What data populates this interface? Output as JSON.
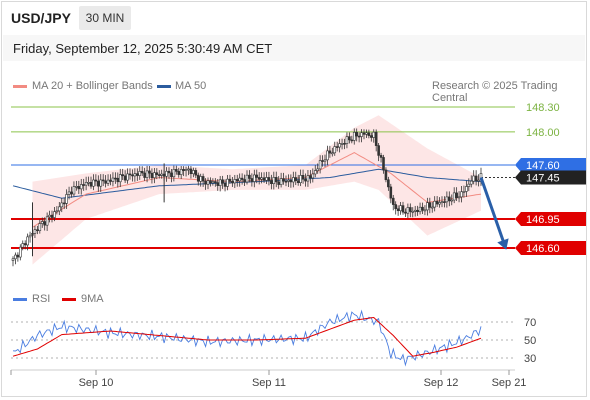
{
  "header": {
    "pair": "USD/JPY",
    "timeframe": "30 MIN",
    "datetime": "Friday, September 12, 2025 5:30:49 AM CET"
  },
  "legend": {
    "ma20": "MA 20 + Bollinger Bands",
    "ma50": "MA 50",
    "credit": "Research © 2025 Trading Central",
    "rsi": "RSI",
    "ma9": "9MA"
  },
  "colors": {
    "ma20": "#f28b82",
    "band_fill": "#fde2e2",
    "ma50": "#2b5c9e",
    "candle": "#333333",
    "resistance": "#8bc34a",
    "support": "#e00000",
    "pivot": "#2f6fe4",
    "arrow": "#2a5fa8",
    "rsi": "#4a7de0",
    "rsi_ma": "#e00000"
  },
  "chart_data": [
    {
      "type": "candlestick",
      "title": "USD/JPY 30 MIN",
      "x_ticks": [
        "Sep 10",
        "Sep 11",
        "Sep 12",
        "Sep 21"
      ],
      "ylim": [
        146.35,
        148.45
      ],
      "levels": [
        {
          "value": 148.3,
          "label": "148.30",
          "kind": "resistance"
        },
        {
          "value": 148.0,
          "label": "148.00",
          "kind": "resistance"
        },
        {
          "value": 147.6,
          "label": "147.60",
          "kind": "pivot"
        },
        {
          "value": 147.45,
          "label": "147.45",
          "kind": "last"
        },
        {
          "value": 146.95,
          "label": "146.95",
          "kind": "support"
        },
        {
          "value": 146.6,
          "label": "146.60",
          "kind": "support"
        }
      ],
      "close_path": [
        [
          0,
          146.45
        ],
        [
          6,
          146.72
        ],
        [
          12,
          146.9
        ],
        [
          18,
          147.05
        ],
        [
          24,
          147.3
        ],
        [
          30,
          147.38
        ],
        [
          38,
          147.4
        ],
        [
          44,
          147.45
        ],
        [
          52,
          147.5
        ],
        [
          60,
          147.48
        ],
        [
          68,
          147.52
        ],
        [
          72,
          147.55
        ],
        [
          78,
          147.4
        ],
        [
          86,
          147.38
        ],
        [
          92,
          147.42
        ],
        [
          100,
          147.45
        ],
        [
          108,
          147.4
        ],
        [
          116,
          147.42
        ],
        [
          122,
          147.45
        ],
        [
          128,
          147.7
        ],
        [
          134,
          147.85
        ],
        [
          140,
          147.95
        ],
        [
          144,
          147.98
        ],
        [
          148,
          147.95
        ],
        [
          152,
          147.55
        ],
        [
          156,
          147.1
        ],
        [
          160,
          147.05
        ],
        [
          166,
          147.05
        ],
        [
          172,
          147.12
        ],
        [
          178,
          147.18
        ],
        [
          184,
          147.25
        ],
        [
          188,
          147.42
        ],
        [
          192,
          147.45
        ]
      ],
      "series": [
        {
          "name": "MA 20",
          "values": [
            [
              8,
              146.85
            ],
            [
              30,
              147.25
            ],
            [
              60,
              147.45
            ],
            [
              90,
              147.4
            ],
            [
              120,
              147.45
            ],
            [
              140,
              147.75
            ],
            [
              155,
              147.5
            ],
            [
              170,
              147.15
            ],
            [
              192,
              147.25
            ]
          ]
        },
        {
          "name": "MA 50",
          "values": [
            [
              0,
              147.35
            ],
            [
              20,
              147.2
            ],
            [
              60,
              147.35
            ],
            [
              100,
              147.4
            ],
            [
              130,
              147.45
            ],
            [
              150,
              147.55
            ],
            [
              170,
              147.45
            ],
            [
              192,
              147.4
            ]
          ]
        }
      ],
      "bollinger_band": {
        "upper": [
          [
            8,
            147.4
          ],
          [
            30,
            147.5
          ],
          [
            60,
            147.6
          ],
          [
            90,
            147.55
          ],
          [
            120,
            147.6
          ],
          [
            140,
            148.05
          ],
          [
            150,
            148.2
          ],
          [
            170,
            147.8
          ],
          [
            192,
            147.45
          ]
        ],
        "lower": [
          [
            8,
            146.4
          ],
          [
            30,
            146.95
          ],
          [
            60,
            147.25
          ],
          [
            90,
            147.3
          ],
          [
            120,
            147.3
          ],
          [
            140,
            147.4
          ],
          [
            150,
            147.3
          ],
          [
            170,
            146.75
          ],
          [
            192,
            147.05
          ]
        ]
      },
      "forecast_arrow": {
        "from": [
          192,
          147.45
        ],
        "to": [
          201,
          146.6
        ]
      }
    },
    {
      "type": "line",
      "title": "RSI",
      "y_ticks": [
        "70",
        "50",
        "30"
      ],
      "ylim": [
        15,
        85
      ],
      "series": [
        {
          "name": "RSI",
          "values": [
            [
              0,
              35
            ],
            [
              10,
              55
            ],
            [
              20,
              65
            ],
            [
              40,
              58
            ],
            [
              60,
              54
            ],
            [
              80,
              48
            ],
            [
              100,
              50
            ],
            [
              120,
              52
            ],
            [
              130,
              70
            ],
            [
              140,
              78
            ],
            [
              150,
              70
            ],
            [
              155,
              35
            ],
            [
              160,
              28
            ],
            [
              170,
              36
            ],
            [
              180,
              45
            ],
            [
              186,
              52
            ],
            [
              192,
              62
            ]
          ]
        },
        {
          "name": "9MA",
          "values": [
            [
              0,
              32
            ],
            [
              10,
              40
            ],
            [
              20,
              56
            ],
            [
              40,
              60
            ],
            [
              60,
              55
            ],
            [
              80,
              50
            ],
            [
              100,
              50
            ],
            [
              120,
              52
            ],
            [
              130,
              62
            ],
            [
              140,
              72
            ],
            [
              148,
              75
            ],
            [
              156,
              55
            ],
            [
              164,
              32
            ],
            [
              172,
              36
            ],
            [
              182,
              42
            ],
            [
              192,
              52
            ]
          ]
        }
      ]
    }
  ]
}
